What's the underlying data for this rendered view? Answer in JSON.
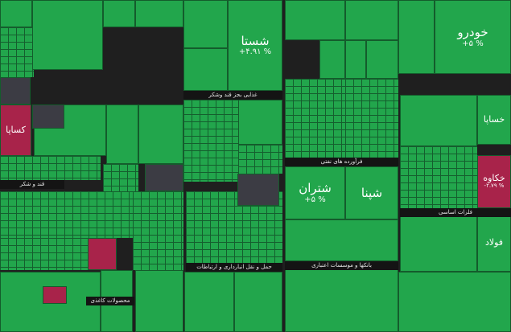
{
  "chart_data": {
    "type": "treemap",
    "colors": {
      "up": "#22a64c",
      "up_light": "#3bc067",
      "down": "#a8234a",
      "neutral": "#3c3c44",
      "border": "#145c2c"
    },
    "sectors": [
      {
        "name": "فلزات اساسی"
      },
      {
        "name": "فرآورده های نفتی"
      },
      {
        "name": "بانکها و موسسات اعتباری"
      },
      {
        "name": "حمل و نقل انبارداری و ارتباطات"
      },
      {
        "name": "غذایی بجز قند وشکر"
      },
      {
        "name": "قند و شکر"
      },
      {
        "name": "محصولات کاغذی"
      }
    ],
    "tiles": [
      {
        "name": "خودرو",
        "change": "+۵ %",
        "color": "up"
      },
      {
        "name": "خساپا",
        "change": "",
        "color": "up"
      },
      {
        "name": "خکاوه",
        "change": "-۲.۷۹ %",
        "color": "down"
      },
      {
        "name": "فولاد",
        "change": "",
        "color": "up"
      },
      {
        "name": "شستا",
        "change": "+۴.۹۱ %",
        "color": "up"
      },
      {
        "name": "شپنا",
        "change": "",
        "color": "up"
      },
      {
        "name": "شتران",
        "change": "+۵ %",
        "color": "up"
      },
      {
        "name": "کساپا",
        "change": "",
        "color": "down"
      },
      {
        "name": "",
        "change": "",
        "color": "up"
      },
      {
        "name": "",
        "change": "",
        "color": "up"
      },
      {
        "name": "",
        "change": "",
        "color": "up"
      },
      {
        "name": "",
        "change": "",
        "color": "up"
      },
      {
        "name": "",
        "change": "",
        "color": "up"
      },
      {
        "name": "",
        "change": "",
        "color": "up"
      },
      {
        "name": "",
        "change": "",
        "color": "up"
      },
      {
        "name": "",
        "change": "",
        "color": "up"
      },
      {
        "name": "",
        "change": "",
        "color": "up"
      },
      {
        "name": "",
        "change": "",
        "color": "up"
      },
      {
        "name": "",
        "change": "",
        "color": "up"
      },
      {
        "name": "",
        "change": "",
        "color": "up"
      },
      {
        "name": "",
        "change": "",
        "color": "up"
      },
      {
        "name": "",
        "change": "",
        "color": "up"
      },
      {
        "name": "",
        "change": "",
        "color": "up"
      },
      {
        "name": "",
        "change": "",
        "color": "up"
      },
      {
        "name": "",
        "change": "",
        "color": "up"
      },
      {
        "name": "",
        "change": "",
        "color": "up"
      },
      {
        "name": "",
        "change": "",
        "color": "up"
      },
      {
        "name": "",
        "change": "",
        "color": "up"
      },
      {
        "name": "",
        "change": "",
        "color": "up"
      },
      {
        "name": "",
        "change": "",
        "color": "up"
      },
      {
        "name": "",
        "change": "",
        "color": "up"
      },
      {
        "name": "",
        "change": "",
        "color": "up"
      },
      {
        "name": "",
        "change": "",
        "color": "up"
      },
      {
        "name": "",
        "change": "",
        "color": "up"
      },
      {
        "name": "",
        "change": "",
        "color": "neutral"
      },
      {
        "name": "",
        "change": "",
        "color": "neutral"
      },
      {
        "name": "",
        "change": "",
        "color": "neutral"
      },
      {
        "name": "",
        "change": "",
        "color": "neutral"
      },
      {
        "name": "",
        "change": "",
        "color": "down"
      },
      {
        "name": "",
        "change": "",
        "color": "down"
      },
      {
        "name": "",
        "change": "",
        "color": "down"
      }
    ]
  }
}
